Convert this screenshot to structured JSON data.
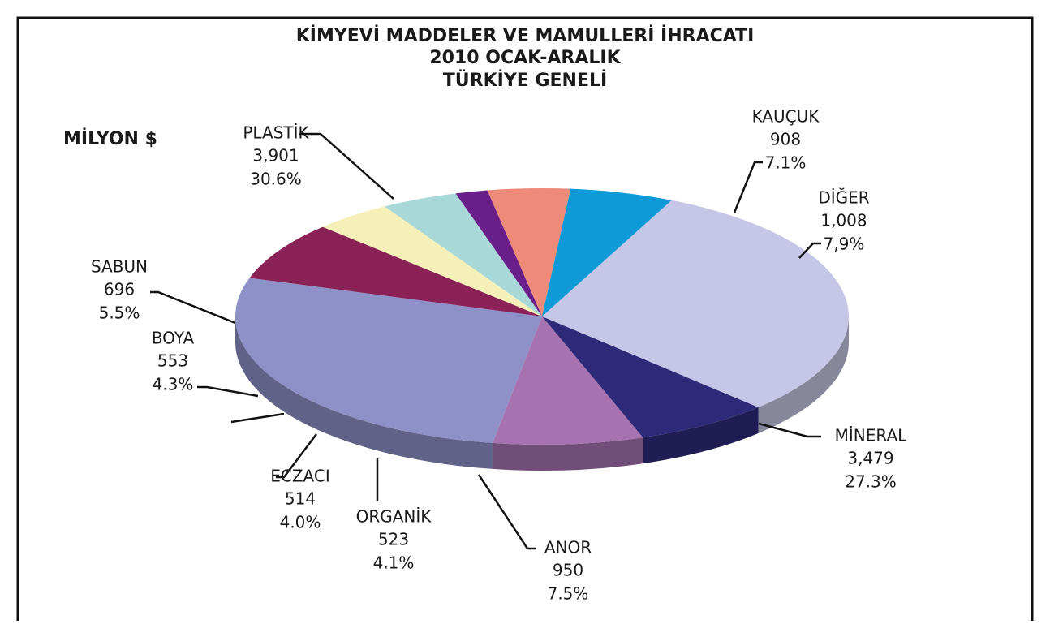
{
  "chart_data": {
    "type": "pie3d",
    "title": [
      "KİMYEVİ MADDELER VE MAMULLERİ İHRACATI",
      "2010 OCAK-ARALIK",
      "TÜRKİYE GENELİ"
    ],
    "unit_label": "MİLYON $",
    "categories": [
      "PLASTİK",
      "KAUÇUK",
      "DİĞER",
      "MİNERAL",
      "ANOR",
      "ORGANİK",
      "ECZACI",
      null,
      "BOYA",
      "SABUN"
    ],
    "values": [
      3901,
      908,
      1008,
      3479,
      950,
      523,
      514,
      216,
      553,
      696
    ],
    "value_labels": [
      "3,901",
      "908",
      "1,008",
      "3,479",
      "950",
      "523",
      "514",
      null,
      "553",
      "696"
    ],
    "percents": [
      30.6,
      7.1,
      7.9,
      27.3,
      7.5,
      4.1,
      4.0,
      1.7,
      4.3,
      5.5
    ],
    "percent_labels": [
      "30.6%",
      "7.1%",
      "7,9%",
      "27.3%",
      "7.5%",
      "4.1%",
      "4.0%",
      null,
      "4.3%",
      "5.5%"
    ],
    "colors": [
      "#c6c6e6",
      "#2e2a7a",
      "#a673b0",
      "#8e90c8",
      "#8a2258",
      "#f5f0b8",
      "#a9d8d8",
      "#6a1e8a",
      "#ee8a7a",
      "#0e9ad6"
    ]
  }
}
